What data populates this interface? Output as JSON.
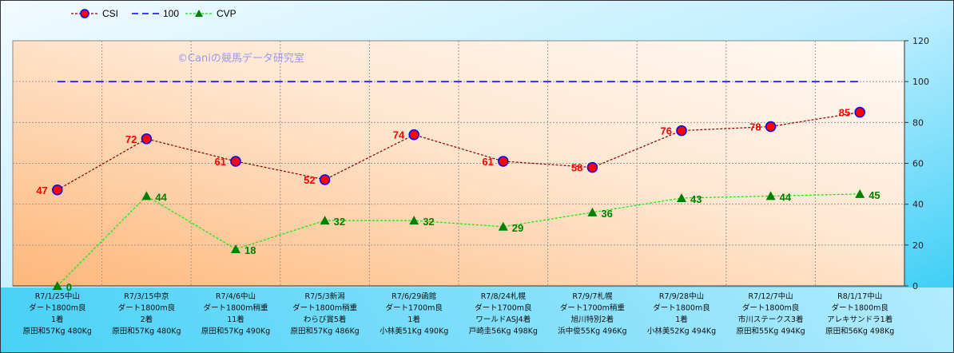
{
  "chart_data": {
    "type": "line",
    "watermark": "©Caniの競馬データ研究室",
    "categories": [
      [
        "R7/1/25中山",
        "ダート1800m良",
        "1着",
        "原田和57Kg 480Kg"
      ],
      [
        "R7/3/15中京",
        "ダート1800m良",
        "2着",
        "原田和57Kg 480Kg"
      ],
      [
        "R7/4/6中山",
        "ダート1800m稍重",
        "11着",
        "原田和57Kg 490Kg"
      ],
      [
        "R7/5/3新潟",
        "ダート1800m稍重",
        "わらび賞5着",
        "原田和57Kg 486Kg"
      ],
      [
        "R7/6/29函館",
        "ダート1700m良",
        "1着",
        "小林美51Kg 490Kg"
      ],
      [
        "R7/8/24札幌",
        "ダート1700m良",
        "ワールドASJ4着",
        "戸崎圭56Kg 498Kg"
      ],
      [
        "R7/9/7札幌",
        "ダート1700m稍重",
        "旭川特別2着",
        "浜中俊55Kg 496Kg"
      ],
      [
        "R7/9/28中山",
        "ダート1800m良",
        "1着",
        "小林美52Kg 494Kg"
      ],
      [
        "R7/12/7中山",
        "ダート1800m良",
        "市川ステークス3着",
        "原田和55Kg 494Kg"
      ],
      [
        "R8/1/17中山",
        "ダート1800m良",
        "アレキサンドラ1着",
        "原田和56Kg 498Kg"
      ]
    ],
    "series": [
      {
        "name": "CSI",
        "values": [
          47,
          72,
          61,
          52,
          74,
          61,
          58,
          76,
          78,
          85
        ],
        "color": "#8b0000",
        "marker": "circle",
        "marker_color": "#ff0000",
        "marker_edge": "#0000ff",
        "label_color": "#ff0000"
      },
      {
        "name": "100",
        "values": [
          100,
          100,
          100,
          100,
          100,
          100,
          100,
          100,
          100,
          100
        ],
        "color": "#0000ff",
        "marker": "none"
      },
      {
        "name": "CVP",
        "values": [
          0,
          44,
          18,
          32,
          32,
          29,
          36,
          43,
          44,
          45
        ],
        "color": "#00ee00",
        "marker": "triangle",
        "marker_color": "#008000",
        "label_color": "#008000"
      }
    ],
    "ylim": [
      0,
      120
    ],
    "yticks": [
      0,
      20,
      40,
      60,
      80,
      100,
      120
    ],
    "y_axis_side": "right",
    "grid": true,
    "legend": "top-left"
  }
}
